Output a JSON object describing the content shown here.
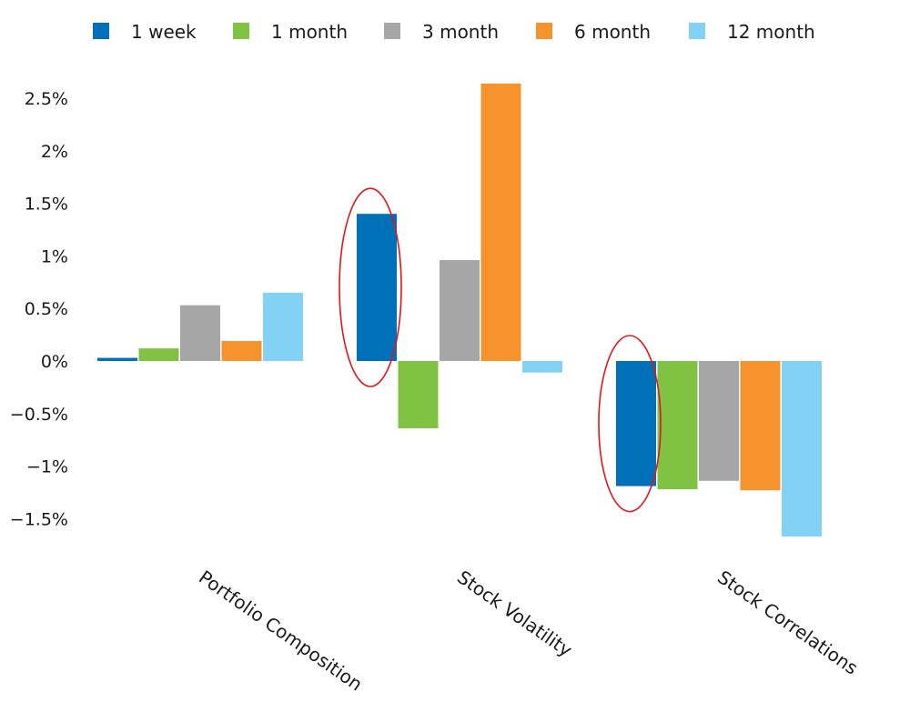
{
  "chart_data": {
    "type": "bar",
    "title": "",
    "xlabel": "",
    "ylabel": "",
    "categories": [
      "Portfolio Composition",
      "Stock Volatility",
      "Stock Correlations"
    ],
    "series": [
      {
        "name": "1 week",
        "color": "#0070b8",
        "values": [
          0.03,
          1.4,
          -1.19
        ]
      },
      {
        "name": "1 month",
        "color": "#80c242",
        "values": [
          0.12,
          -0.64,
          -1.22
        ]
      },
      {
        "name": "3 month",
        "color": "#a6a6a6",
        "values": [
          0.53,
          0.96,
          -1.14
        ]
      },
      {
        "name": "6 month",
        "color": "#f7932d",
        "values": [
          0.19,
          2.64,
          -1.23
        ]
      },
      {
        "name": "12 month",
        "color": "#82d2f6",
        "values": [
          0.65,
          -0.11,
          -1.67
        ]
      }
    ],
    "ylim": [
      -1.75,
      2.7
    ],
    "yticks": [
      {
        "value": 2.5,
        "label": "2.5%"
      },
      {
        "value": 2.0,
        "label": "2%"
      },
      {
        "value": 1.5,
        "label": "1.5%"
      },
      {
        "value": 1.0,
        "label": "1%"
      },
      {
        "value": 0.5,
        "label": "0.5%"
      },
      {
        "value": 0.0,
        "label": "0%"
      },
      {
        "value": -0.5,
        "label": "−0.5%"
      },
      {
        "value": -1.0,
        "label": "−1%"
      },
      {
        "value": -1.5,
        "label": "−1.5%"
      }
    ],
    "grid": false,
    "legend_position": "top",
    "annotations": [
      {
        "type": "ellipse",
        "color": "#e0161b",
        "category": "Stock Volatility",
        "series": "1 week"
      },
      {
        "type": "ellipse",
        "color": "#e0161b",
        "category": "Stock Correlations",
        "series": "1 week"
      }
    ]
  }
}
